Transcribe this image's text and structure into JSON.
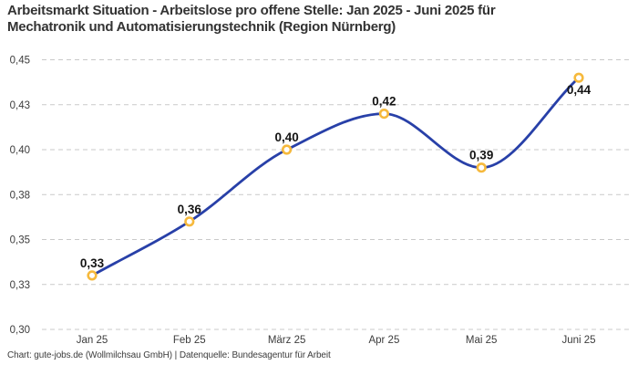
{
  "header": {
    "title_line1": "Arbeitsmarkt Situation - Arbeitslose pro offene Stelle: Jan 2025 - Juni 2025 für",
    "title_line2": "Mechatronik und Automatisierungstechnik (Region Nürnberg)"
  },
  "footer": {
    "credit": "Chart: gute-jobs.de (Wollmilchsau GmbH) | Datenquelle: Bundesagentur für Arbeit"
  },
  "chart_data": {
    "type": "line",
    "title": "Arbeitsmarkt Situation - Arbeitslose pro offene Stelle: Jan 2025 - Juni 2025 für Mechatronik und Automatisierungstechnik (Region Nürnberg)",
    "categories": [
      "Jan 25",
      "Feb 25",
      "März 25",
      "Apr 25",
      "Mai 25",
      "Juni 25"
    ],
    "series": [
      {
        "name": "Arbeitslose pro offene Stelle",
        "values": [
          0.33,
          0.36,
          0.4,
          0.42,
          0.39,
          0.44
        ],
        "point_labels": [
          "0,33",
          "0,36",
          "0,40",
          "0,42",
          "0,39",
          "0,44"
        ],
        "label_placement": [
          "above",
          "above",
          "above",
          "above",
          "above",
          "below"
        ]
      }
    ],
    "xlabel": "",
    "ylabel": "",
    "ylim": [
      0.3,
      0.45
    ],
    "y_ticks": [
      0.3,
      0.325,
      0.35,
      0.375,
      0.4,
      0.425,
      0.45
    ],
    "y_tick_labels": [
      "0,30",
      "0,33",
      "0,35",
      "0,38",
      "0,40",
      "0,43",
      "0,45"
    ],
    "grid": "horizontal-dashed",
    "legend": "none",
    "curve": "monotone-smooth",
    "colors": {
      "line": "#2840A8",
      "marker_ring": "#F6B93C",
      "marker_fill": "#FFFFFF",
      "grid": "#C9C9C9",
      "title_text": "#333333",
      "axis_text": "#3C3C3C",
      "point_label_text": "#141414",
      "background": "#FFFFFF"
    }
  }
}
